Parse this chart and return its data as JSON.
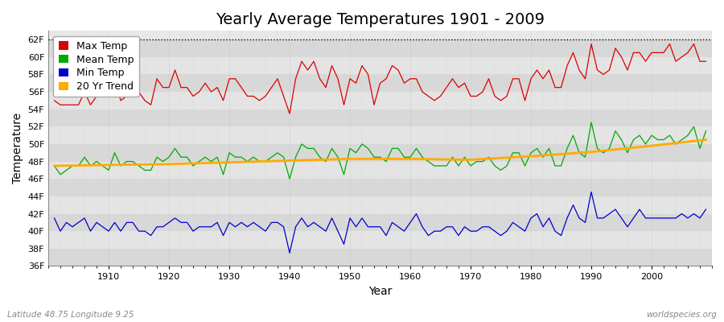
{
  "title": "Yearly Average Temperatures 1901 - 2009",
  "xlabel": "Year",
  "ylabel": "Temperature",
  "background_color": "#ffffff",
  "plot_bg_color": "#e8e8e8",
  "band_color_light": "#e0e0e0",
  "band_color_dark": "#d0d0d0",
  "years": [
    1901,
    1902,
    1903,
    1904,
    1905,
    1906,
    1907,
    1908,
    1909,
    1910,
    1911,
    1912,
    1913,
    1914,
    1915,
    1916,
    1917,
    1918,
    1919,
    1920,
    1921,
    1922,
    1923,
    1924,
    1925,
    1926,
    1927,
    1928,
    1929,
    1930,
    1931,
    1932,
    1933,
    1934,
    1935,
    1936,
    1937,
    1938,
    1939,
    1940,
    1941,
    1942,
    1943,
    1944,
    1945,
    1946,
    1947,
    1948,
    1949,
    1950,
    1951,
    1952,
    1953,
    1954,
    1955,
    1956,
    1957,
    1958,
    1959,
    1960,
    1961,
    1962,
    1963,
    1964,
    1965,
    1966,
    1967,
    1968,
    1969,
    1970,
    1971,
    1972,
    1973,
    1974,
    1975,
    1976,
    1977,
    1978,
    1979,
    1980,
    1981,
    1982,
    1983,
    1984,
    1985,
    1986,
    1987,
    1988,
    1989,
    1990,
    1991,
    1992,
    1993,
    1994,
    1995,
    1996,
    1997,
    1998,
    1999,
    2000,
    2001,
    2002,
    2003,
    2004,
    2005,
    2006,
    2007,
    2008,
    2009
  ],
  "max_temp": [
    55.0,
    54.5,
    54.5,
    54.5,
    54.5,
    56.0,
    54.5,
    55.5,
    55.5,
    55.5,
    57.5,
    55.0,
    55.5,
    55.5,
    56.0,
    55.0,
    54.5,
    57.5,
    56.5,
    56.5,
    58.5,
    56.5,
    56.5,
    55.5,
    56.0,
    57.0,
    56.0,
    56.5,
    55.0,
    57.5,
    57.5,
    56.5,
    55.5,
    55.5,
    55.0,
    55.5,
    56.5,
    57.5,
    55.5,
    53.5,
    57.5,
    59.5,
    58.5,
    59.5,
    57.5,
    56.5,
    59.0,
    57.5,
    54.5,
    57.5,
    57.0,
    59.0,
    58.0,
    54.5,
    57.0,
    57.5,
    59.0,
    58.5,
    57.0,
    57.5,
    57.5,
    56.0,
    55.5,
    55.0,
    55.5,
    56.5,
    57.5,
    56.5,
    57.0,
    55.5,
    55.5,
    56.0,
    57.5,
    55.5,
    55.0,
    55.5,
    57.5,
    57.5,
    55.0,
    57.5,
    58.5,
    57.5,
    58.5,
    56.5,
    56.5,
    59.0,
    60.5,
    58.5,
    57.5,
    61.5,
    58.5,
    58.0,
    58.5,
    61.0,
    60.0,
    58.5,
    60.5,
    60.5,
    59.5,
    60.5,
    60.5,
    60.5,
    61.5,
    59.5,
    60.0,
    60.5,
    61.5,
    59.5,
    59.5
  ],
  "mean_temp": [
    47.5,
    46.5,
    47.0,
    47.5,
    47.5,
    48.5,
    47.5,
    48.0,
    47.5,
    47.0,
    49.0,
    47.5,
    48.0,
    48.0,
    47.5,
    47.0,
    47.0,
    48.5,
    48.0,
    48.5,
    49.5,
    48.5,
    48.5,
    47.5,
    48.0,
    48.5,
    48.0,
    48.5,
    46.5,
    49.0,
    48.5,
    48.5,
    48.0,
    48.5,
    48.0,
    48.0,
    48.5,
    49.0,
    48.5,
    46.0,
    48.5,
    50.0,
    49.5,
    49.5,
    48.5,
    48.0,
    49.5,
    48.5,
    46.5,
    49.5,
    49.0,
    50.0,
    49.5,
    48.5,
    48.5,
    48.0,
    49.5,
    49.5,
    48.5,
    48.5,
    49.5,
    48.5,
    48.0,
    47.5,
    47.5,
    47.5,
    48.5,
    47.5,
    48.5,
    47.5,
    48.0,
    48.0,
    48.5,
    47.5,
    47.0,
    47.5,
    49.0,
    49.0,
    47.5,
    49.0,
    49.5,
    48.5,
    49.5,
    47.5,
    47.5,
    49.5,
    51.0,
    49.0,
    48.5,
    52.5,
    49.5,
    49.0,
    49.5,
    51.5,
    50.5,
    49.0,
    50.5,
    51.0,
    50.0,
    51.0,
    50.5,
    50.5,
    51.0,
    50.0,
    50.5,
    51.0,
    52.0,
    49.5,
    51.5
  ],
  "min_temp": [
    41.5,
    40.0,
    41.0,
    40.5,
    41.0,
    41.5,
    40.0,
    41.0,
    40.5,
    40.0,
    41.0,
    40.0,
    41.0,
    41.0,
    40.0,
    40.0,
    39.5,
    40.5,
    40.5,
    41.0,
    41.5,
    41.0,
    41.0,
    40.0,
    40.5,
    40.5,
    40.5,
    41.0,
    39.5,
    41.0,
    40.5,
    41.0,
    40.5,
    41.0,
    40.5,
    40.0,
    41.0,
    41.0,
    40.5,
    37.5,
    40.5,
    41.5,
    40.5,
    41.0,
    40.5,
    40.0,
    41.5,
    40.0,
    38.5,
    41.5,
    40.5,
    41.5,
    40.5,
    40.5,
    40.5,
    39.5,
    41.0,
    40.5,
    40.0,
    41.0,
    42.0,
    40.5,
    39.5,
    40.0,
    40.0,
    40.5,
    40.5,
    39.5,
    40.5,
    40.0,
    40.0,
    40.5,
    40.5,
    40.0,
    39.5,
    40.0,
    41.0,
    40.5,
    40.0,
    41.5,
    42.0,
    40.5,
    41.5,
    40.0,
    39.5,
    41.5,
    43.0,
    41.5,
    41.0,
    44.5,
    41.5,
    41.5,
    42.0,
    42.5,
    41.5,
    40.5,
    41.5,
    42.5,
    41.5,
    41.5,
    41.5,
    41.5,
    41.5,
    41.5,
    42.0,
    41.5,
    42.0,
    41.5,
    42.5
  ],
  "trend_years": [
    1901,
    1910,
    1920,
    1930,
    1940,
    1950,
    1960,
    1970,
    1980,
    1990,
    2000,
    2009
  ],
  "trend_values": [
    47.5,
    47.6,
    47.7,
    47.9,
    48.1,
    48.3,
    48.3,
    48.2,
    48.6,
    49.1,
    49.8,
    50.5
  ],
  "ylim": [
    36,
    63
  ],
  "yticks": [
    36,
    38,
    40,
    42,
    44,
    46,
    48,
    50,
    52,
    54,
    56,
    58,
    60,
    62
  ],
  "ytick_labels": [
    "36F",
    "38F",
    "40F",
    "42F",
    "44F",
    "46F",
    "48F",
    "50F",
    "52F",
    "54F",
    "56F",
    "58F",
    "60F",
    "62F"
  ],
  "max_color": "#dd0000",
  "mean_color": "#00aa00",
  "min_color": "#0000cc",
  "trend_color": "#ffaa00",
  "grid_color": "#cccccc",
  "footer_left": "Latitude 48.75 Longitude 9.25",
  "footer_right": "worldspecies.org",
  "title_fontsize": 14,
  "axis_label_fontsize": 10,
  "tick_fontsize": 8,
  "legend_fontsize": 9
}
